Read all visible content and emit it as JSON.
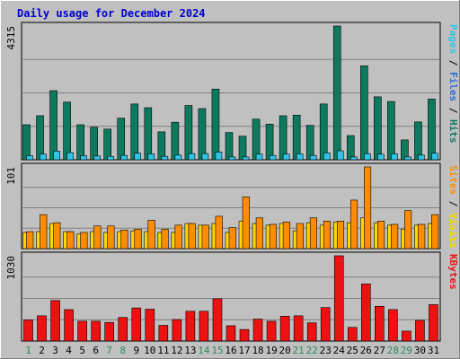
{
  "chart_data": {
    "type": "bar",
    "title": "Daily usage for December 2024",
    "categories": [
      "1",
      "2",
      "3",
      "4",
      "5",
      "6",
      "7",
      "8",
      "9",
      "10",
      "11",
      "12",
      "13",
      "14",
      "15",
      "16",
      "17",
      "18",
      "19",
      "20",
      "21",
      "22",
      "23",
      "24",
      "25",
      "26",
      "27",
      "28",
      "29",
      "30",
      "31"
    ],
    "weekend_days": [
      "1",
      "7",
      "8",
      "14",
      "15",
      "21",
      "22",
      "28",
      "29"
    ],
    "colors": {
      "title": "#0000cc",
      "hits": "#0d7a5f",
      "files": "#2fc4e8",
      "visits": "#ff8c00",
      "sites": "#ffd700",
      "kbytes": "#ee1111",
      "day_weekday": "#000000",
      "day_weekend": "#2e8b57"
    },
    "panels": [
      {
        "id": "hits",
        "max_label": "4315",
        "side_labels": [
          "Pages",
          "Files",
          "Hits"
        ],
        "side_colors": [
          "#2fc4e8",
          "#2f6fd8",
          "#0d7a5f"
        ],
        "series": [
          {
            "name": "Hits",
            "values": [
              1130,
              1420,
              2230,
              1860,
              1130,
              1050,
              990,
              1340,
              1800,
              1680,
              900,
              1210,
              1750,
              1650,
              2280,
              880,
              760,
              1310,
              1150,
              1420,
              1440,
              1110,
              1800,
              4315,
              780,
              3030,
              2030,
              1880,
              640,
              1220,
              1960
            ]
          },
          {
            "name": "Files",
            "values": [
              130,
              180,
              280,
              230,
              130,
              120,
              110,
              140,
              210,
              190,
              110,
              150,
              200,
              200,
              250,
              90,
              90,
              180,
              140,
              180,
              190,
              140,
              220,
              290,
              90,
              200,
              180,
              190,
              90,
              150,
              210
            ]
          }
        ],
        "ylim": [
          0,
          4315
        ]
      },
      {
        "id": "visits",
        "max_label": "101",
        "side_labels": [
          "Sites",
          "Visits"
        ],
        "side_colors": [
          "#ff8c00",
          "#ffd700"
        ],
        "series": [
          {
            "name": "Sites",
            "values": [
              20,
              21,
              31,
              21,
              18,
              21,
              20,
              21,
              22,
              21,
              20,
              20,
              31,
              29,
              31,
              20,
              34,
              31,
              29,
              31,
              22,
              32,
              29,
              33,
              32,
              38,
              32,
              29,
              24,
              29,
              31
            ]
          },
          {
            "name": "Visits",
            "values": [
              21,
              42,
              32,
              21,
              20,
              28,
              28,
              23,
              24,
              35,
              24,
              29,
              31,
              29,
              40,
              26,
              64,
              38,
              30,
              33,
              31,
              38,
              34,
              34,
              60,
              101,
              34,
              30,
              47,
              30,
              42
            ]
          }
        ],
        "ylim": [
          0,
          101
        ]
      },
      {
        "id": "kbytes",
        "max_label": "1030",
        "side_labels": [
          "KBytes"
        ],
        "side_colors": [
          "#ee1111"
        ],
        "series": [
          {
            "name": "KBytes",
            "values": [
              255,
              305,
              490,
              380,
              240,
              240,
              225,
              285,
              400,
              385,
              190,
              260,
              360,
              360,
              510,
              185,
              140,
              265,
              240,
              300,
              305,
              220,
              405,
              1030,
              165,
              690,
              420,
              380,
              120,
              250,
              440
            ]
          }
        ],
        "ylim": [
          0,
          1030
        ]
      }
    ]
  }
}
